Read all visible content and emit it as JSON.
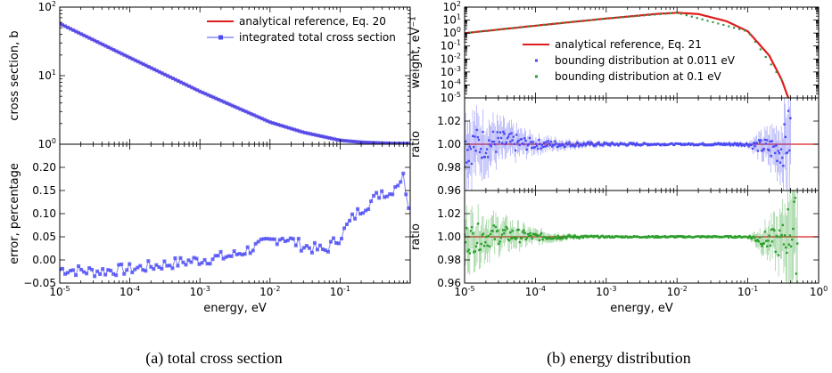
{
  "captions": {
    "a": "(a) total cross section",
    "b": "(b) energy distribution"
  },
  "colors": {
    "reference": "#dd1c1c",
    "series_blue": "#4b4bf5",
    "series_green": "#2ca02c",
    "axis": "#000000",
    "background": "#ffffff"
  },
  "chart_data": [
    {
      "id": "a_top",
      "type": "line",
      "xscale": "log",
      "yscale": "log",
      "xlim": [
        1e-05,
        1
      ],
      "ylim": [
        1,
        100
      ],
      "ylabel": "cross section, b",
      "xlabel": "",
      "legend_placement": "top-right",
      "yticks": [
        {
          "base": "10",
          "exp": "0"
        },
        {
          "base": "10",
          "exp": "1"
        },
        {
          "base": "10",
          "exp": "2"
        }
      ],
      "series": [
        {
          "name": "analytical reference, Eq. 20",
          "style": "line",
          "color": "#dd1c1c",
          "x": [
            1e-05,
            0.0001,
            0.001,
            0.01,
            0.03,
            0.1,
            0.2,
            0.3,
            0.5,
            1.0
          ],
          "y": [
            57.5,
            18.3,
            5.9,
            2.1,
            1.49,
            1.14,
            1.07,
            1.05,
            1.03,
            1.02
          ]
        },
        {
          "name": "integrated total cross section",
          "style": "line+marker",
          "color": "#4b4bf5",
          "x": [
            1e-05,
            0.0001,
            0.001,
            0.01,
            0.03,
            0.1,
            0.2,
            0.3,
            0.5,
            1.0
          ],
          "y": [
            57.5,
            18.3,
            5.9,
            2.1,
            1.49,
            1.14,
            1.07,
            1.05,
            1.03,
            1.02
          ]
        }
      ]
    },
    {
      "id": "a_bottom",
      "type": "line",
      "xscale": "log",
      "yscale": "linear",
      "xlim": [
        1e-05,
        1
      ],
      "ylim": [
        -0.05,
        0.25
      ],
      "ylabel": "error, percentage",
      "xlabel": "energy, eV",
      "xticks": [
        {
          "base": "10",
          "exp": "-5"
        },
        {
          "base": "10",
          "exp": "-4"
        },
        {
          "base": "10",
          "exp": "-3"
        },
        {
          "base": "10",
          "exp": "-2"
        },
        {
          "base": "10",
          "exp": "-1"
        }
      ],
      "yticks": [
        "−0.05",
        "0.00",
        "0.05",
        "0.10",
        "0.15",
        "0.20"
      ],
      "series": [
        {
          "name": "",
          "style": "line+marker",
          "color": "#4b4bf5",
          "x": [
            1e-05,
            3e-05,
            0.0001,
            0.0003,
            0.001,
            0.003,
            0.01,
            0.015,
            0.03,
            0.06,
            0.1,
            0.15,
            0.2,
            0.3,
            0.4,
            0.5,
            0.6,
            0.8,
            0.95
          ],
          "y": [
            -0.02,
            -0.025,
            -0.02,
            -0.01,
            0.0,
            0.01,
            0.04,
            0.05,
            0.03,
            0.02,
            0.05,
            0.09,
            0.11,
            0.13,
            0.15,
            0.14,
            0.16,
            0.18,
            0.12
          ]
        }
      ]
    },
    {
      "id": "b_top",
      "type": "line",
      "xscale": "log",
      "yscale": "log",
      "xlim": [
        1e-05,
        1
      ],
      "ylim": [
        1e-05,
        100
      ],
      "ylabel": "weight, eV⁻¹",
      "xlabel": "",
      "legend_placement": "center-right",
      "yticks": [
        {
          "base": "10",
          "exp": "-5"
        },
        {
          "base": "10",
          "exp": "-4"
        },
        {
          "base": "10",
          "exp": "-3"
        },
        {
          "base": "10",
          "exp": "-2"
        },
        {
          "base": "10",
          "exp": "-1"
        },
        {
          "base": "10",
          "exp": "0"
        },
        {
          "base": "10",
          "exp": "1"
        },
        {
          "base": "10",
          "exp": "2"
        }
      ],
      "series": [
        {
          "name": "analytical reference, Eq. 21",
          "style": "line",
          "color": "#dd1c1c",
          "x": [
            1e-05,
            0.0001,
            0.001,
            0.005,
            0.01,
            0.02,
            0.05,
            0.1,
            0.2,
            0.3,
            0.4
          ],
          "y": [
            0.98,
            3.7,
            13.2,
            29.5,
            36.8,
            29.5,
            8.2,
            1.36,
            0.019,
            0.00026,
            3.6e-06
          ]
        },
        {
          "name": "bounding distribution at 0.011 eV",
          "style": "marker",
          "color": "#4b4bf5",
          "x": [
            1e-05,
            0.0001,
            0.001,
            0.01,
            0.1,
            0.3
          ],
          "y": [
            0.98,
            3.7,
            13.2,
            36.8,
            1.36,
            0.00026
          ]
        },
        {
          "name": "bounding distribution at 0.1 eV",
          "style": "marker",
          "color": "#2ca02c",
          "x": [
            1e-05,
            0.0001,
            0.001,
            0.01,
            0.1,
            0.3
          ],
          "y": [
            0.98,
            3.7,
            13.2,
            36.8,
            1.36,
            0.00026
          ]
        }
      ]
    },
    {
      "id": "b_mid",
      "type": "scatter",
      "xscale": "log",
      "yscale": "linear",
      "xlim": [
        1e-05,
        1
      ],
      "ylim": [
        0.96,
        1.04
      ],
      "ylabel": "ratio",
      "xlabel": "",
      "yticks": [
        "0.96",
        "0.98",
        "1.00",
        "1.02"
      ],
      "reference_line": 1.0,
      "series": [
        {
          "name": "bounding distribution at 0.011 eV",
          "style": "marker+errorbar",
          "color": "#4b4bf5",
          "x": [
            1e-05,
            3e-05,
            0.0001,
            0.0003,
            0.001,
            0.01,
            0.1,
            0.3,
            0.4
          ],
          "y": [
            0.998,
            1.002,
            1.0,
            1.0,
            1.0,
            1.0,
            1.0,
            0.995,
            1.01
          ],
          "err": [
            0.025,
            0.015,
            0.006,
            0.003,
            0.002,
            0.001,
            0.002,
            0.02,
            0.04
          ]
        }
      ]
    },
    {
      "id": "b_bottom",
      "type": "scatter",
      "xscale": "log",
      "yscale": "linear",
      "xlim": [
        1e-05,
        1
      ],
      "ylim": [
        0.96,
        1.04
      ],
      "ylabel": "ratio",
      "xlabel": "energy, eV",
      "xticks": [
        {
          "base": "10",
          "exp": "-5"
        },
        {
          "base": "10",
          "exp": "-4"
        },
        {
          "base": "10",
          "exp": "-3"
        },
        {
          "base": "10",
          "exp": "-2"
        },
        {
          "base": "10",
          "exp": "-1"
        },
        {
          "base": "10",
          "exp": "0"
        }
      ],
      "yticks": [
        "0.96",
        "0.98",
        "1.00",
        "1.02"
      ],
      "reference_line": 1.0,
      "series": [
        {
          "name": "bounding distribution at 0.1 eV",
          "style": "marker+errorbar",
          "color": "#2ca02c",
          "x": [
            1e-05,
            3e-05,
            0.0001,
            0.0003,
            0.001,
            0.01,
            0.1,
            0.3,
            0.4,
            0.5
          ],
          "y": [
            0.998,
            1.002,
            1.0,
            1.0,
            1.0,
            1.0,
            1.0,
            0.995,
            1.01,
            1.0
          ],
          "err": [
            0.02,
            0.012,
            0.005,
            0.002,
            0.001,
            0.001,
            0.001,
            0.02,
            0.04,
            0.05
          ]
        }
      ]
    }
  ]
}
